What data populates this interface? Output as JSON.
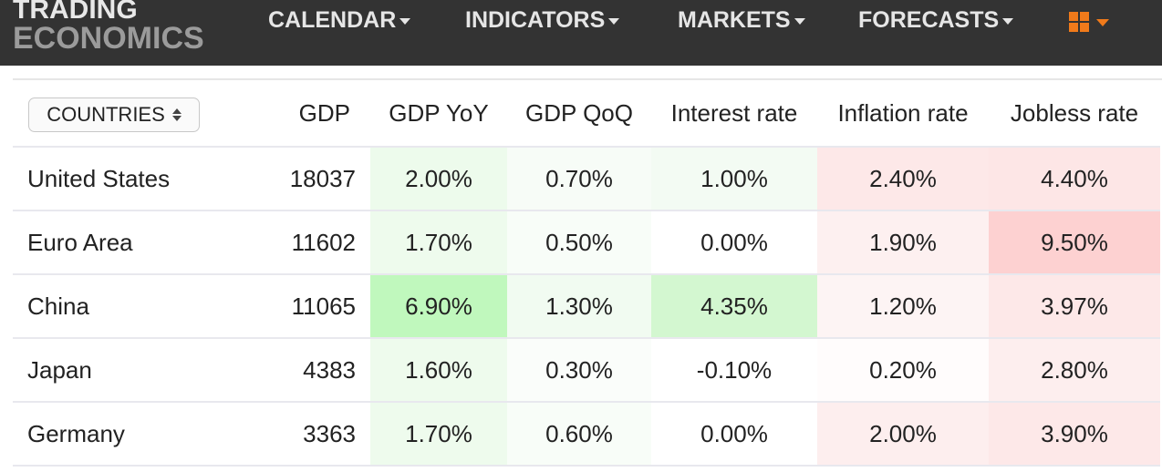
{
  "brand": {
    "line1": "TRADING",
    "line2": "ECONOMICS"
  },
  "nav": [
    {
      "label": "CALENDAR"
    },
    {
      "label": "INDICATORS"
    },
    {
      "label": "MARKETS"
    },
    {
      "label": "FORECASTS"
    }
  ],
  "apps_icon": "grid-icon",
  "table": {
    "selector_label": "COUNTRIES",
    "columns": [
      "GDP",
      "GDP YoY",
      "GDP QoQ",
      "Interest rate",
      "Inflation rate",
      "Jobless rate"
    ],
    "rows": [
      {
        "country": "United States",
        "gdp": "18037",
        "gdp_yoy": "2.00%",
        "gdp_qoq": "0.70%",
        "interest": "1.00%",
        "inflation": "2.40%",
        "jobless": "4.40%"
      },
      {
        "country": "Euro Area",
        "gdp": "11602",
        "gdp_yoy": "1.70%",
        "gdp_qoq": "0.50%",
        "interest": "0.00%",
        "inflation": "1.90%",
        "jobless": "9.50%"
      },
      {
        "country": "China",
        "gdp": "11065",
        "gdp_yoy": "6.90%",
        "gdp_qoq": "1.30%",
        "interest": "4.35%",
        "inflation": "1.20%",
        "jobless": "3.97%"
      },
      {
        "country": "Japan",
        "gdp": "4383",
        "gdp_yoy": "1.60%",
        "gdp_qoq": "0.30%",
        "interest": "-0.10%",
        "inflation": "0.20%",
        "jobless": "2.80%"
      },
      {
        "country": "Germany",
        "gdp": "3363",
        "gdp_yoy": "1.70%",
        "gdp_qoq": "0.60%",
        "interest": "0.00%",
        "inflation": "2.00%",
        "jobless": "3.90%"
      }
    ],
    "cell_colors": [
      [
        "#edfbec",
        "#f7fcf7",
        "#f3fbf3",
        "#fde8e8",
        "#fde6e6"
      ],
      [
        "#eefbed",
        "#f8fdf8",
        "#ffffff",
        "#fdf0f0",
        "#fdd1d1"
      ],
      [
        "#c0f8bd",
        "#f1fbf1",
        "#d3f7d0",
        "#fdf4f4",
        "#fde8e8"
      ],
      [
        "#eefbed",
        "#fafdfa",
        "#ffffff",
        "#fffcfc",
        "#fdeeee"
      ],
      [
        "#eefbed",
        "#f8fdf8",
        "#ffffff",
        "#fdeeee",
        "#fde8e8"
      ]
    ]
  }
}
